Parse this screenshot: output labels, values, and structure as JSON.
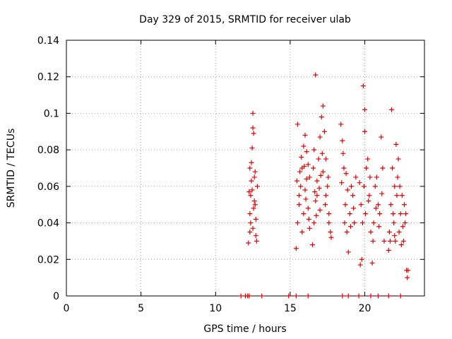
{
  "chart_data": {
    "type": "scatter",
    "title": "Day 329 of 2015, SRMTID for receiver ulab",
    "xlabel": "GPS time / hours",
    "ylabel": "SRMTID / TECUs",
    "xlim": [
      0,
      24
    ],
    "ylim": [
      0,
      0.14
    ],
    "xticks": [
      "0",
      "5",
      "10",
      "15",
      "20"
    ],
    "yticks": [
      "0",
      "0.02",
      "0.04",
      "0.06",
      "0.08",
      "0.1",
      "0.12",
      "0.14"
    ],
    "xtick_values": [
      0,
      5,
      10,
      15,
      20
    ],
    "ytick_values": [
      0,
      0.02,
      0.04,
      0.06,
      0.08,
      0.1,
      0.12,
      0.14
    ],
    "grid": true,
    "marker": "+",
    "series_color": "#e00000",
    "series": [
      {
        "name": "SRMTID",
        "points": [
          [
            12.0,
            0.0
          ],
          [
            12.15,
            0.0
          ],
          [
            12.25,
            0.0
          ],
          [
            13.1,
            0.0
          ],
          [
            14.9,
            0.0
          ],
          [
            15.4,
            0.0
          ],
          [
            16.2,
            0.0
          ],
          [
            18.5,
            0.0
          ],
          [
            18.9,
            0.0
          ],
          [
            19.6,
            0.0
          ],
          [
            20.4,
            0.0
          ],
          [
            20.9,
            0.0
          ],
          [
            21.6,
            0.0
          ],
          [
            22.4,
            0.0
          ],
          [
            11.7,
            0.0
          ],
          [
            12.2,
            0.029
          ],
          [
            12.3,
            0.035
          ],
          [
            12.3,
            0.045
          ],
          [
            12.35,
            0.055
          ],
          [
            12.4,
            0.073
          ],
          [
            12.45,
            0.081
          ],
          [
            12.5,
            0.092
          ],
          [
            12.5,
            0.1
          ],
          [
            12.55,
            0.089
          ],
          [
            12.6,
            0.065
          ],
          [
            12.65,
            0.05
          ],
          [
            12.7,
            0.042
          ],
          [
            12.75,
            0.03
          ],
          [
            12.8,
            0.06
          ],
          [
            12.4,
            0.063
          ],
          [
            12.3,
            0.07
          ],
          [
            12.5,
            0.037
          ],
          [
            12.6,
            0.052
          ],
          [
            12.35,
            0.04
          ],
          [
            12.7,
            0.033
          ],
          [
            12.45,
            0.058
          ],
          [
            12.55,
            0.048
          ],
          [
            12.25,
            0.057
          ],
          [
            12.65,
            0.068
          ],
          [
            15.4,
            0.026
          ],
          [
            15.5,
            0.04
          ],
          [
            15.6,
            0.05
          ],
          [
            15.7,
            0.06
          ],
          [
            15.8,
            0.07
          ],
          [
            15.9,
            0.082
          ],
          [
            16.0,
            0.088
          ],
          [
            16.1,
            0.079
          ],
          [
            16.2,
            0.072
          ],
          [
            16.3,
            0.065
          ],
          [
            15.5,
            0.094
          ],
          [
            15.6,
            0.055
          ],
          [
            15.8,
            0.035
          ],
          [
            15.9,
            0.045
          ],
          [
            16.0,
            0.058
          ],
          [
            16.1,
            0.064
          ],
          [
            16.2,
            0.048
          ],
          [
            16.3,
            0.037
          ],
          [
            15.45,
            0.063
          ],
          [
            15.75,
            0.076
          ],
          [
            16.05,
            0.053
          ],
          [
            16.25,
            0.042
          ],
          [
            15.65,
            0.068
          ],
          [
            15.95,
            0.071
          ],
          [
            16.5,
            0.028
          ],
          [
            16.6,
            0.04
          ],
          [
            16.7,
            0.052
          ],
          [
            16.8,
            0.063
          ],
          [
            16.9,
            0.075
          ],
          [
            17.0,
            0.087
          ],
          [
            17.1,
            0.098
          ],
          [
            17.2,
            0.104
          ],
          [
            17.3,
            0.09
          ],
          [
            17.4,
            0.075
          ],
          [
            17.5,
            0.06
          ],
          [
            17.6,
            0.045
          ],
          [
            17.7,
            0.035
          ],
          [
            16.7,
            0.121
          ],
          [
            16.6,
            0.08
          ],
          [
            16.8,
            0.055
          ],
          [
            17.0,
            0.047
          ],
          [
            17.2,
            0.068
          ],
          [
            17.4,
            0.055
          ],
          [
            17.6,
            0.04
          ],
          [
            16.55,
            0.07
          ],
          [
            16.75,
            0.044
          ],
          [
            16.95,
            0.059
          ],
          [
            17.15,
            0.078
          ],
          [
            17.35,
            0.05
          ],
          [
            17.55,
            0.065
          ],
          [
            17.75,
            0.032
          ],
          [
            16.65,
            0.057
          ],
          [
            17.05,
            0.066
          ],
          [
            18.4,
            0.094
          ],
          [
            18.5,
            0.085
          ],
          [
            18.6,
            0.07
          ],
          [
            18.7,
            0.05
          ],
          [
            18.8,
            0.035
          ],
          [
            18.9,
            0.024
          ],
          [
            19.0,
            0.045
          ],
          [
            19.1,
            0.06
          ],
          [
            19.2,
            0.055
          ],
          [
            19.3,
            0.04
          ],
          [
            19.4,
            0.065
          ],
          [
            18.55,
            0.078
          ],
          [
            18.65,
            0.04
          ],
          [
            18.85,
            0.058
          ],
          [
            19.05,
            0.038
          ],
          [
            19.25,
            0.048
          ],
          [
            18.45,
            0.062
          ],
          [
            18.75,
            0.067
          ],
          [
            19.7,
            0.017
          ],
          [
            19.8,
            0.02
          ],
          [
            19.9,
            0.115
          ],
          [
            20.0,
            0.102
          ],
          [
            20.0,
            0.09
          ],
          [
            20.1,
            0.07
          ],
          [
            19.75,
            0.05
          ],
          [
            19.85,
            0.04
          ],
          [
            19.95,
            0.06
          ],
          [
            20.05,
            0.045
          ],
          [
            20.2,
            0.075
          ],
          [
            20.3,
            0.055
          ],
          [
            20.4,
            0.035
          ],
          [
            20.5,
            0.018
          ],
          [
            20.6,
            0.04
          ],
          [
            20.7,
            0.06
          ],
          [
            20.8,
            0.065
          ],
          [
            20.9,
            0.05
          ],
          [
            21.0,
            0.045
          ],
          [
            21.1,
            0.087
          ],
          [
            21.2,
            0.07
          ],
          [
            21.3,
            0.03
          ],
          [
            20.35,
            0.065
          ],
          [
            20.55,
            0.03
          ],
          [
            20.75,
            0.048
          ],
          [
            20.95,
            0.038
          ],
          [
            21.15,
            0.056
          ],
          [
            19.65,
            0.062
          ],
          [
            20.25,
            0.052
          ],
          [
            21.6,
            0.025
          ],
          [
            21.7,
            0.03
          ],
          [
            21.8,
            0.102
          ],
          [
            21.9,
            0.045
          ],
          [
            22.0,
            0.06
          ],
          [
            22.1,
            0.083
          ],
          [
            22.2,
            0.065
          ],
          [
            22.3,
            0.035
          ],
          [
            22.4,
            0.045
          ],
          [
            22.5,
            0.055
          ],
          [
            22.6,
            0.03
          ],
          [
            22.7,
            0.04
          ],
          [
            22.8,
            0.014
          ],
          [
            22.85,
            0.01
          ],
          [
            21.65,
            0.035
          ],
          [
            21.75,
            0.05
          ],
          [
            21.85,
            0.07
          ],
          [
            21.95,
            0.04
          ],
          [
            22.05,
            0.03
          ],
          [
            22.15,
            0.055
          ],
          [
            22.25,
            0.075
          ],
          [
            22.35,
            0.06
          ],
          [
            22.45,
            0.028
          ],
          [
            22.55,
            0.038
          ],
          [
            22.65,
            0.05
          ],
          [
            22.75,
            0.045
          ],
          [
            22.9,
            0.014
          ],
          [
            22.0,
            0.033
          ]
        ]
      }
    ]
  }
}
